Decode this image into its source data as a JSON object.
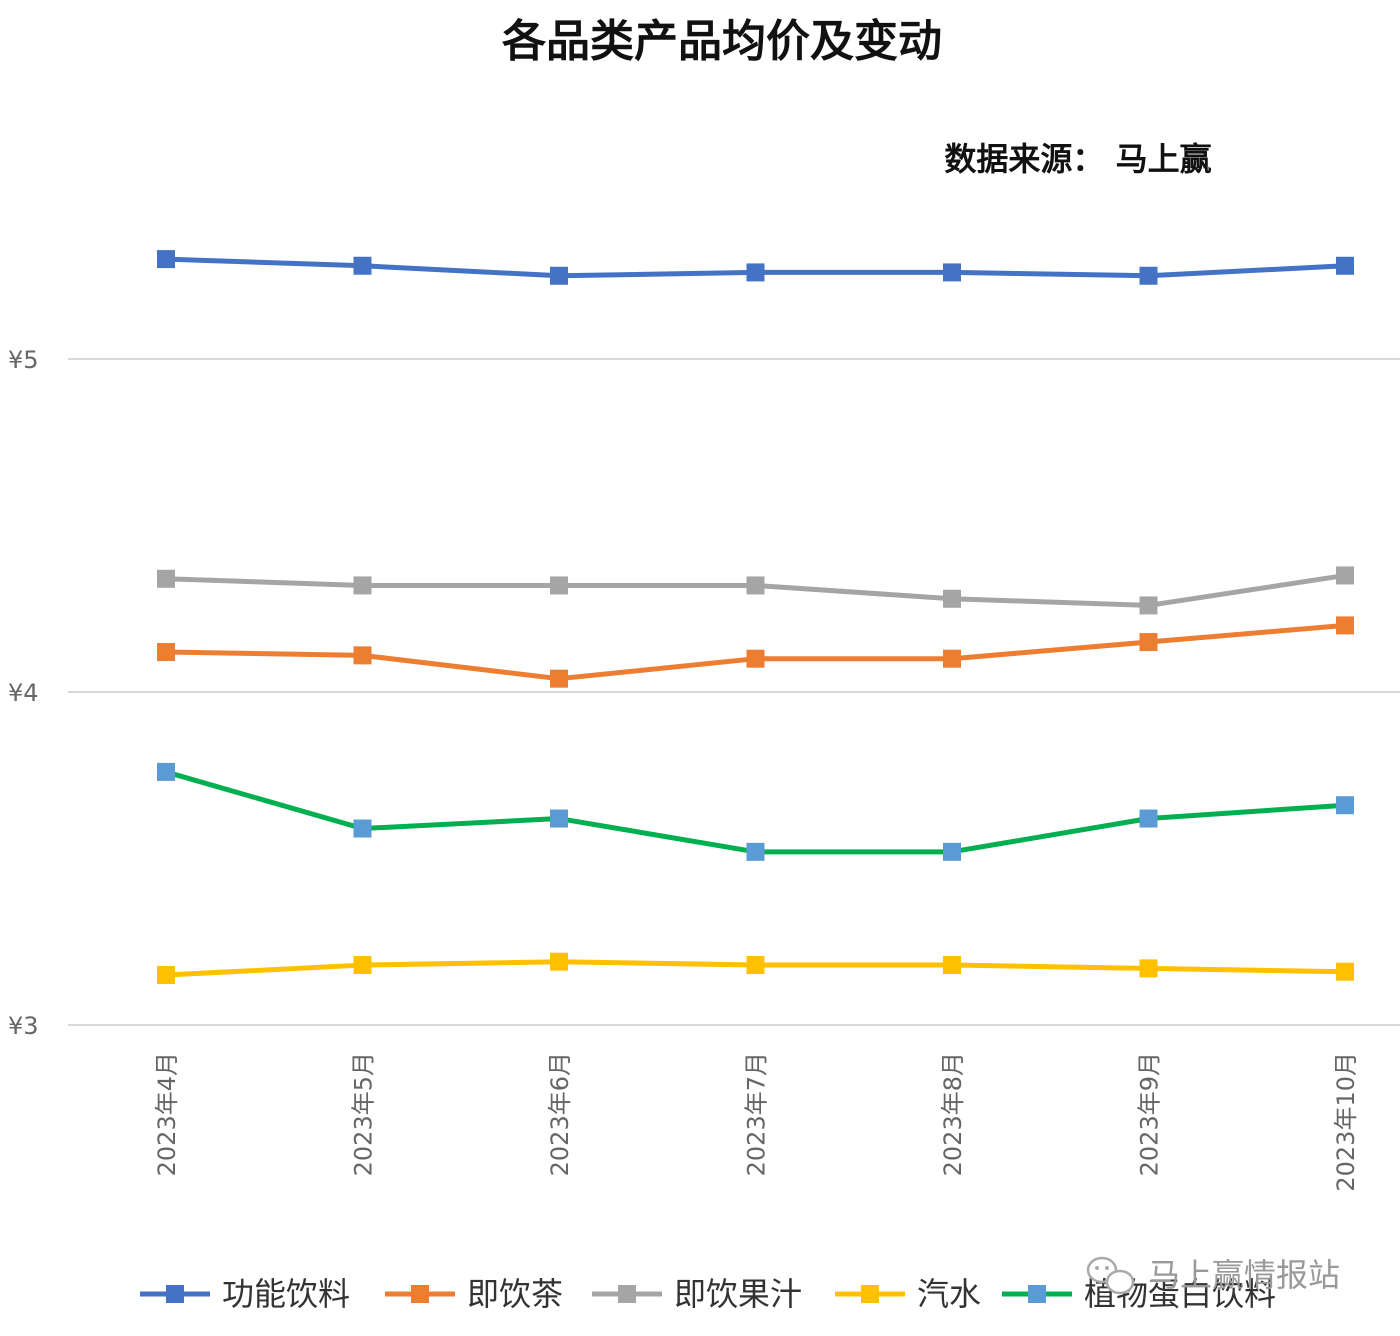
{
  "chart_data": {
    "type": "line",
    "title": "各品类产品均价及变动",
    "source_note": "数据来源： 马上赢",
    "categories": [
      "2023年4月",
      "2023年5月",
      "2023年6月",
      "2023年7月",
      "2023年8月",
      "2023年9月",
      "2023年10月"
    ],
    "y_ticks": [
      "¥3",
      "¥4",
      "¥5"
    ],
    "ylim": [
      3,
      5.9
    ],
    "grid": true,
    "legend_position": "bottom",
    "series": [
      {
        "name": "功能饮料",
        "color": "#4472c4",
        "marker_color": "#4472c4",
        "values": [
          5.3,
          5.28,
          5.25,
          5.26,
          5.26,
          5.25,
          5.28
        ]
      },
      {
        "name": "即饮茶",
        "color": "#ed7d31",
        "marker_color": "#ed7d31",
        "values": [
          4.12,
          4.11,
          4.04,
          4.1,
          4.1,
          4.15,
          4.2
        ]
      },
      {
        "name": "即饮果汁",
        "color": "#a5a5a5",
        "marker_color": "#a5a5a5",
        "values": [
          4.34,
          4.32,
          4.32,
          4.32,
          4.28,
          4.26,
          4.35
        ]
      },
      {
        "name": "汽水",
        "color": "#ffc000",
        "marker_color": "#ffc000",
        "values": [
          3.15,
          3.18,
          3.19,
          3.18,
          3.18,
          3.17,
          3.16
        ]
      },
      {
        "name": "植物蛋白饮料",
        "color": "#00b050",
        "marker_color": "#5b9bd5",
        "values": [
          3.76,
          3.59,
          3.62,
          3.52,
          3.52,
          3.62,
          3.66
        ]
      }
    ]
  },
  "watermark": {
    "text": "马上赢情报站",
    "icon": "wechat-icon"
  }
}
